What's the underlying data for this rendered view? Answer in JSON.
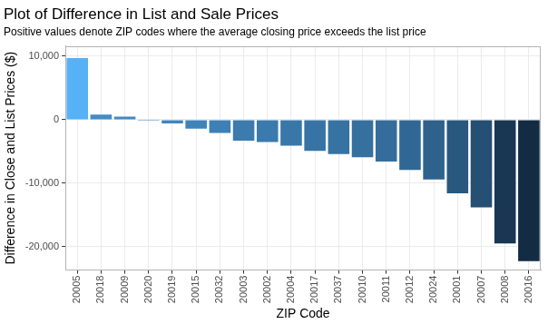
{
  "chart_data": {
    "type": "bar",
    "title": "Plot of Difference in List and Sale Prices",
    "subtitle": "Positive values denote ZIP codes where the average closing price exceeds the list price",
    "x_label": "ZIP Code",
    "y_label": "Difference in Close and List Prices ($)",
    "categories": [
      "20005",
      "20018",
      "20009",
      "20020",
      "20019",
      "20015",
      "20032",
      "20003",
      "20002",
      "20004",
      "20017",
      "20037",
      "20010",
      "20011",
      "20012",
      "20024",
      "20001",
      "20007",
      "20008",
      "20016"
    ],
    "values": [
      9700,
      800,
      500,
      -150,
      -600,
      -1400,
      -2100,
      -3300,
      -3500,
      -4100,
      -4900,
      -5400,
      -5900,
      -6600,
      -7900,
      -9400,
      -11600,
      -13800,
      -19500,
      -22300
    ],
    "colors": [
      "#56B1F7",
      "#438CC5",
      "#438AC3",
      "#4188C0",
      "#4086BD",
      "#3F83B9",
      "#3D80B5",
      "#3B7BAE",
      "#3A7AAD",
      "#3977A9",
      "#3774A5",
      "#3672A2",
      "#35709F",
      "#346D9B",
      "#316794",
      "#2E618C",
      "#29587F",
      "#254F73",
      "#193753",
      "#132B43"
    ],
    "ylim": [
      -23700,
      11600
    ],
    "yticks": [
      {
        "value": -20000,
        "label": "-20,000"
      },
      {
        "value": -10000,
        "label": "-10,000"
      },
      0,
      {
        "value": 10000,
        "label": "10,000"
      }
    ],
    "grid": true
  }
}
